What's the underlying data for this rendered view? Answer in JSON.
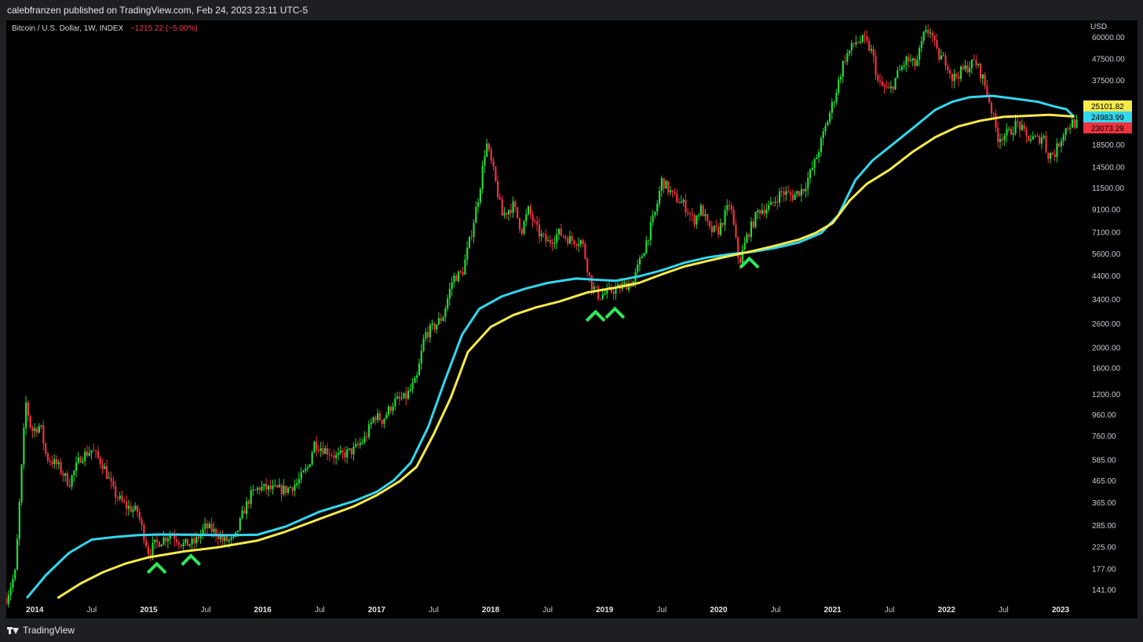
{
  "header": {
    "publisher": "calebfranzen published on TradingView.com, Feb 24, 2023 23:11 UTC-5"
  },
  "footer": {
    "brand": "TradingView"
  },
  "colors": {
    "up": "#26d93a",
    "down": "#f0333f",
    "ma_cyan": "#33d6ee",
    "ma_yellow": "#f7ea4b",
    "marker": "#2ee85a"
  },
  "chart_data": {
    "type": "candlestick",
    "symbol": "Bitcoin / U.S. Dollar, 1W, INDEX",
    "change": "−1215.22 (−5.00%)",
    "currency": "USD",
    "y_scale": "log",
    "ylim": [
      128,
      72000
    ],
    "xlim": [
      2013.75,
      2023.2
    ],
    "y_ticks": [
      "60000.00",
      "47500.00",
      "37500.00",
      "18500.00",
      "14500.00",
      "11500.00",
      "9100.00",
      "7100.00",
      "5600.00",
      "4400.00",
      "3400.00",
      "2600.00",
      "2000.00",
      "1600.00",
      "1200.00",
      "960.00",
      "760.00",
      "585.00",
      "465.00",
      "365.00",
      "285.00",
      "225.00",
      "177.00",
      "141.00"
    ],
    "x_ticks": [
      {
        "label": "2014",
        "t": 2014.0,
        "year": true
      },
      {
        "label": "Jul",
        "t": 2014.5,
        "year": false
      },
      {
        "label": "2015",
        "t": 2015.0,
        "year": true
      },
      {
        "label": "Jul",
        "t": 2015.5,
        "year": false
      },
      {
        "label": "2016",
        "t": 2016.0,
        "year": true
      },
      {
        "label": "Jul",
        "t": 2016.5,
        "year": false
      },
      {
        "label": "2017",
        "t": 2017.0,
        "year": true
      },
      {
        "label": "Jul",
        "t": 2017.5,
        "year": false
      },
      {
        "label": "2018",
        "t": 2018.0,
        "year": true
      },
      {
        "label": "Jul",
        "t": 2018.5,
        "year": false
      },
      {
        "label": "2019",
        "t": 2019.0,
        "year": true
      },
      {
        "label": "Jul",
        "t": 2019.5,
        "year": false
      },
      {
        "label": "2020",
        "t": 2020.0,
        "year": true
      },
      {
        "label": "Jul",
        "t": 2020.5,
        "year": false
      },
      {
        "label": "2021",
        "t": 2021.0,
        "year": true
      },
      {
        "label": "Jul",
        "t": 2021.5,
        "year": false
      },
      {
        "label": "2022",
        "t": 2022.0,
        "year": true
      },
      {
        "label": "Jul",
        "t": 2022.5,
        "year": false
      },
      {
        "label": "2023",
        "t": 2023.0,
        "year": true
      }
    ],
    "price_tags": [
      {
        "value": 25101.82,
        "label": "25101.82",
        "color": "#f7ea4b"
      },
      {
        "value": 24983.99,
        "label": "24983.99",
        "color": "#33d6ee"
      },
      {
        "value": 23073.29,
        "label": "23073.29",
        "color": "#f0333f"
      }
    ],
    "price_path": [
      [
        2013.75,
        128
      ],
      [
        2013.83,
        170
      ],
      [
        2013.87,
        400
      ],
      [
        2013.92,
        1100
      ],
      [
        2013.97,
        800
      ],
      [
        2014.05,
        850
      ],
      [
        2014.1,
        600
      ],
      [
        2014.2,
        550
      ],
      [
        2014.3,
        450
      ],
      [
        2014.4,
        600
      ],
      [
        2014.5,
        650
      ],
      [
        2014.6,
        550
      ],
      [
        2014.7,
        400
      ],
      [
        2014.8,
        350
      ],
      [
        2014.9,
        330
      ],
      [
        2015.0,
        210
      ],
      [
        2015.05,
        230
      ],
      [
        2015.2,
        260
      ],
      [
        2015.3,
        230
      ],
      [
        2015.4,
        235
      ],
      [
        2015.5,
        280
      ],
      [
        2015.6,
        260
      ],
      [
        2015.65,
        240
      ],
      [
        2015.75,
        240
      ],
      [
        2015.83,
        330
      ],
      [
        2015.9,
        400
      ],
      [
        2015.97,
        430
      ],
      [
        2016.1,
        420
      ],
      [
        2016.2,
        420
      ],
      [
        2016.3,
        450
      ],
      [
        2016.4,
        540
      ],
      [
        2016.45,
        700
      ],
      [
        2016.55,
        650
      ],
      [
        2016.65,
        600
      ],
      [
        2016.8,
        650
      ],
      [
        2016.9,
        740
      ],
      [
        2016.98,
        950
      ],
      [
        2017.05,
        900
      ],
      [
        2017.15,
        1100
      ],
      [
        2017.25,
        1150
      ],
      [
        2017.35,
        1400
      ],
      [
        2017.42,
        2300
      ],
      [
        2017.5,
        2500
      ],
      [
        2017.58,
        2800
      ],
      [
        2017.67,
        4300
      ],
      [
        2017.75,
        4500
      ],
      [
        2017.83,
        7000
      ],
      [
        2017.9,
        11000
      ],
      [
        2017.96,
        19000
      ],
      [
        2018.02,
        14000
      ],
      [
        2018.1,
        8500
      ],
      [
        2018.2,
        9500
      ],
      [
        2018.27,
        7200
      ],
      [
        2018.33,
        9000
      ],
      [
        2018.42,
        7000
      ],
      [
        2018.5,
        6300
      ],
      [
        2018.6,
        7000
      ],
      [
        2018.7,
        6500
      ],
      [
        2018.8,
        6400
      ],
      [
        2018.88,
        4000
      ],
      [
        2018.95,
        3500
      ],
      [
        2019.05,
        3700
      ],
      [
        2019.15,
        3900
      ],
      [
        2019.25,
        4100
      ],
      [
        2019.35,
        6000
      ],
      [
        2019.45,
        9000
      ],
      [
        2019.5,
        12500
      ],
      [
        2019.6,
        10500
      ],
      [
        2019.7,
        9500
      ],
      [
        2019.78,
        8000
      ],
      [
        2019.85,
        9200
      ],
      [
        2019.92,
        7200
      ],
      [
        2020.0,
        7200
      ],
      [
        2020.1,
        9800
      ],
      [
        2020.18,
        5000
      ],
      [
        2020.25,
        6800
      ],
      [
        2020.35,
        9000
      ],
      [
        2020.45,
        9300
      ],
      [
        2020.55,
        11000
      ],
      [
        2020.65,
        10500
      ],
      [
        2020.75,
        11500
      ],
      [
        2020.85,
        15500
      ],
      [
        2020.95,
        23500
      ],
      [
        2021.03,
        33000
      ],
      [
        2021.1,
        47000
      ],
      [
        2021.2,
        57000
      ],
      [
        2021.28,
        58000
      ],
      [
        2021.35,
        50000
      ],
      [
        2021.4,
        36000
      ],
      [
        2021.5,
        33000
      ],
      [
        2021.57,
        40000
      ],
      [
        2021.65,
        47000
      ],
      [
        2021.73,
        44000
      ],
      [
        2021.8,
        61000
      ],
      [
        2021.86,
        65000
      ],
      [
        2021.92,
        49000
      ],
      [
        2022.0,
        46000
      ],
      [
        2022.05,
        38000
      ],
      [
        2022.15,
        42000
      ],
      [
        2022.25,
        46000
      ],
      [
        2022.32,
        38000
      ],
      [
        2022.38,
        29000
      ],
      [
        2022.45,
        20000
      ],
      [
        2022.55,
        21000
      ],
      [
        2022.62,
        23500
      ],
      [
        2022.7,
        20000
      ],
      [
        2022.8,
        19500
      ],
      [
        2022.85,
        20500
      ],
      [
        2022.88,
        16500
      ],
      [
        2022.95,
        16800
      ],
      [
        2023.03,
        21500
      ],
      [
        2023.1,
        23500
      ],
      [
        2023.15,
        23073
      ]
    ],
    "series": [
      {
        "name": "",
        "color": "#33d6ee",
        "points": [
          [
            2013.93,
            128
          ],
          [
            2014.1,
            165
          ],
          [
            2014.3,
            210
          ],
          [
            2014.5,
            243
          ],
          [
            2014.7,
            250
          ],
          [
            2014.9,
            255
          ],
          [
            2015.1,
            257
          ],
          [
            2015.4,
            256
          ],
          [
            2015.7,
            255
          ],
          [
            2015.95,
            256
          ],
          [
            2016.2,
            280
          ],
          [
            2016.5,
            330
          ],
          [
            2016.8,
            370
          ],
          [
            2017.0,
            410
          ],
          [
            2017.15,
            465
          ],
          [
            2017.3,
            565
          ],
          [
            2017.45,
            830
          ],
          [
            2017.6,
            1400
          ],
          [
            2017.75,
            2300
          ],
          [
            2017.9,
            3050
          ],
          [
            2018.1,
            3500
          ],
          [
            2018.3,
            3800
          ],
          [
            2018.5,
            4050
          ],
          [
            2018.75,
            4250
          ],
          [
            2018.9,
            4200
          ],
          [
            2019.1,
            4150
          ],
          [
            2019.3,
            4350
          ],
          [
            2019.5,
            4650
          ],
          [
            2019.7,
            5050
          ],
          [
            2019.9,
            5350
          ],
          [
            2020.1,
            5550
          ],
          [
            2020.3,
            5700
          ],
          [
            2020.5,
            5950
          ],
          [
            2020.7,
            6300
          ],
          [
            2020.9,
            7000
          ],
          [
            2021.05,
            8500
          ],
          [
            2021.2,
            12500
          ],
          [
            2021.35,
            15500
          ],
          [
            2021.5,
            18000
          ],
          [
            2021.7,
            22000
          ],
          [
            2021.9,
            27000
          ],
          [
            2022.05,
            29500
          ],
          [
            2022.2,
            31000
          ],
          [
            2022.4,
            31500
          ],
          [
            2022.6,
            30500
          ],
          [
            2022.8,
            29500
          ],
          [
            2022.95,
            28000
          ],
          [
            2023.05,
            27200
          ],
          [
            2023.12,
            25000
          ]
        ]
      },
      {
        "name": "",
        "color": "#f7ea4b",
        "points": [
          [
            2014.2,
            128
          ],
          [
            2014.4,
            150
          ],
          [
            2014.6,
            170
          ],
          [
            2014.8,
            187
          ],
          [
            2015.0,
            200
          ],
          [
            2015.3,
            213
          ],
          [
            2015.6,
            223
          ],
          [
            2015.95,
            240
          ],
          [
            2016.2,
            265
          ],
          [
            2016.5,
            305
          ],
          [
            2016.8,
            350
          ],
          [
            2017.0,
            395
          ],
          [
            2017.2,
            460
          ],
          [
            2017.35,
            540
          ],
          [
            2017.5,
            770
          ],
          [
            2017.65,
            1150
          ],
          [
            2017.8,
            1900
          ],
          [
            2018.0,
            2500
          ],
          [
            2018.2,
            2850
          ],
          [
            2018.4,
            3100
          ],
          [
            2018.6,
            3300
          ],
          [
            2018.85,
            3650
          ],
          [
            2019.1,
            3850
          ],
          [
            2019.3,
            4050
          ],
          [
            2019.5,
            4450
          ],
          [
            2019.7,
            4850
          ],
          [
            2019.9,
            5150
          ],
          [
            2020.1,
            5450
          ],
          [
            2020.3,
            5750
          ],
          [
            2020.5,
            6100
          ],
          [
            2020.7,
            6500
          ],
          [
            2020.85,
            7000
          ],
          [
            2021.0,
            7800
          ],
          [
            2021.15,
            10000
          ],
          [
            2021.3,
            12000
          ],
          [
            2021.5,
            14000
          ],
          [
            2021.7,
            17000
          ],
          [
            2021.9,
            20000
          ],
          [
            2022.1,
            22500
          ],
          [
            2022.3,
            24000
          ],
          [
            2022.5,
            25000
          ],
          [
            2022.7,
            25300
          ],
          [
            2022.9,
            25600
          ],
          [
            2023.12,
            25100
          ]
        ]
      }
    ],
    "markers": [
      {
        "t": 2015.07,
        "value": 183
      },
      {
        "t": 2015.37,
        "value": 200
      },
      {
        "t": 2018.92,
        "value": 2900
      },
      {
        "t": 2019.09,
        "value": 3000
      },
      {
        "t": 2020.27,
        "value": 5200
      }
    ]
  }
}
